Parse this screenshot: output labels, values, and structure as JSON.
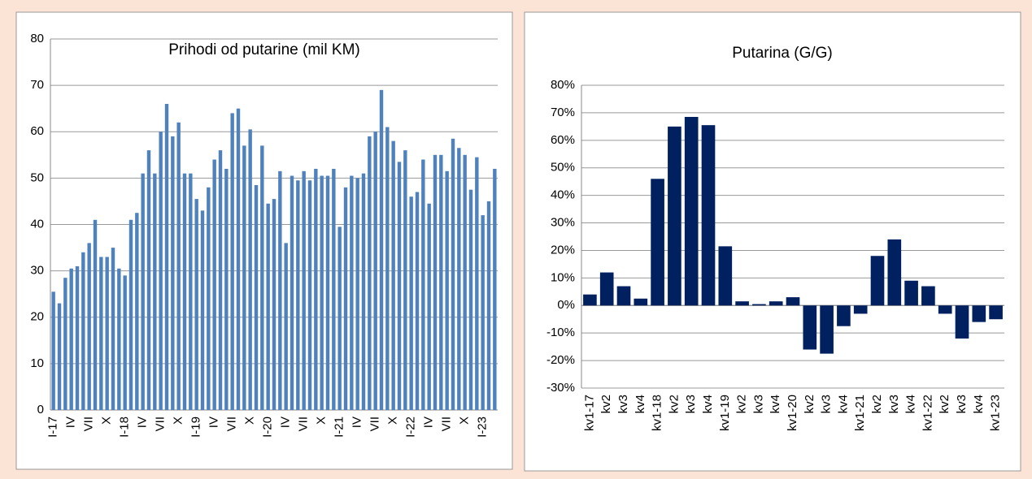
{
  "chart_data": [
    {
      "type": "bar",
      "title": "Prihodi od putarine (mil KM)",
      "color": "#4f81bd",
      "grid": true,
      "ylim": [
        0,
        80
      ],
      "yticks": [
        0,
        10,
        20,
        30,
        40,
        50,
        60,
        70,
        80
      ],
      "categories": [
        "I-17",
        null,
        null,
        "IV",
        null,
        null,
        "VII",
        null,
        null,
        "X",
        null,
        null,
        "I-18",
        null,
        null,
        "IV",
        null,
        null,
        "VII",
        null,
        null,
        "X",
        null,
        null,
        "I-19",
        null,
        null,
        "IV",
        null,
        null,
        "VII",
        null,
        null,
        "X",
        null,
        null,
        "I-20",
        null,
        null,
        "IV",
        null,
        null,
        "VII",
        null,
        null,
        "X",
        null,
        null,
        "I-21",
        null,
        null,
        "IV",
        null,
        null,
        "VII",
        null,
        null,
        "X",
        null,
        null,
        "I-22",
        null,
        null,
        "IV",
        null,
        null,
        "VII",
        null,
        null,
        "X",
        null,
        null,
        "I-23",
        null,
        null
      ],
      "values": [
        25.5,
        23,
        28.5,
        30.5,
        31,
        34,
        36,
        41,
        33,
        33,
        35,
        30.5,
        29,
        41,
        42.5,
        51,
        56,
        51,
        60,
        66,
        59,
        62,
        51,
        51,
        45.5,
        43,
        48,
        54,
        56,
        52,
        64,
        65,
        57,
        60.5,
        48.5,
        57,
        44.5,
        45.5,
        51.5,
        36,
        50.5,
        49.5,
        51.5,
        49.5,
        52,
        50.5,
        50.5,
        52,
        39.5,
        48,
        50.5,
        50,
        51,
        59,
        60,
        69,
        61,
        58,
        53.5,
        56,
        46,
        47,
        54,
        44.5,
        55,
        55,
        51.5,
        58.5,
        56.5,
        55,
        47.5,
        54.5,
        42,
        45,
        52
      ]
    },
    {
      "type": "bar",
      "title": "Putarina (G/G)",
      "color": "#002060",
      "grid": true,
      "ylim": [
        -30,
        80
      ],
      "yticks": [
        {
          "value": -30,
          "label": "-30%"
        },
        {
          "value": -20,
          "label": "-20%"
        },
        {
          "value": -10,
          "label": "-10%"
        },
        {
          "value": 0,
          "label": "0%"
        },
        {
          "value": 10,
          "label": "10%"
        },
        {
          "value": 20,
          "label": "20%"
        },
        {
          "value": 30,
          "label": "30%"
        },
        {
          "value": 40,
          "label": "40%"
        },
        {
          "value": 50,
          "label": "50%"
        },
        {
          "value": 60,
          "label": "60%"
        },
        {
          "value": 70,
          "label": "70%"
        },
        {
          "value": 80,
          "label": "80%"
        }
      ],
      "categories": [
        "kv1-17",
        "kv2",
        "kv3",
        "kv4",
        "kv1-18",
        "kv2",
        "kv3",
        "kv4",
        "kv1-19",
        "kv2",
        "kv3",
        "kv4",
        "kv1-20",
        "kv2",
        "kv3",
        "kv4",
        "kv1-21",
        "kv2",
        "kv3",
        "kv4",
        "kv1-22",
        "kv2",
        "kv3",
        "kv4",
        "kv1-23"
      ],
      "values": [
        4,
        12,
        7,
        2.5,
        46,
        65,
        68.5,
        65.5,
        21.5,
        1.5,
        0.5,
        1.5,
        3,
        -16,
        -17.5,
        -7.5,
        -3,
        18,
        24,
        9,
        7,
        -3,
        -12,
        -6,
        -5
      ]
    }
  ]
}
